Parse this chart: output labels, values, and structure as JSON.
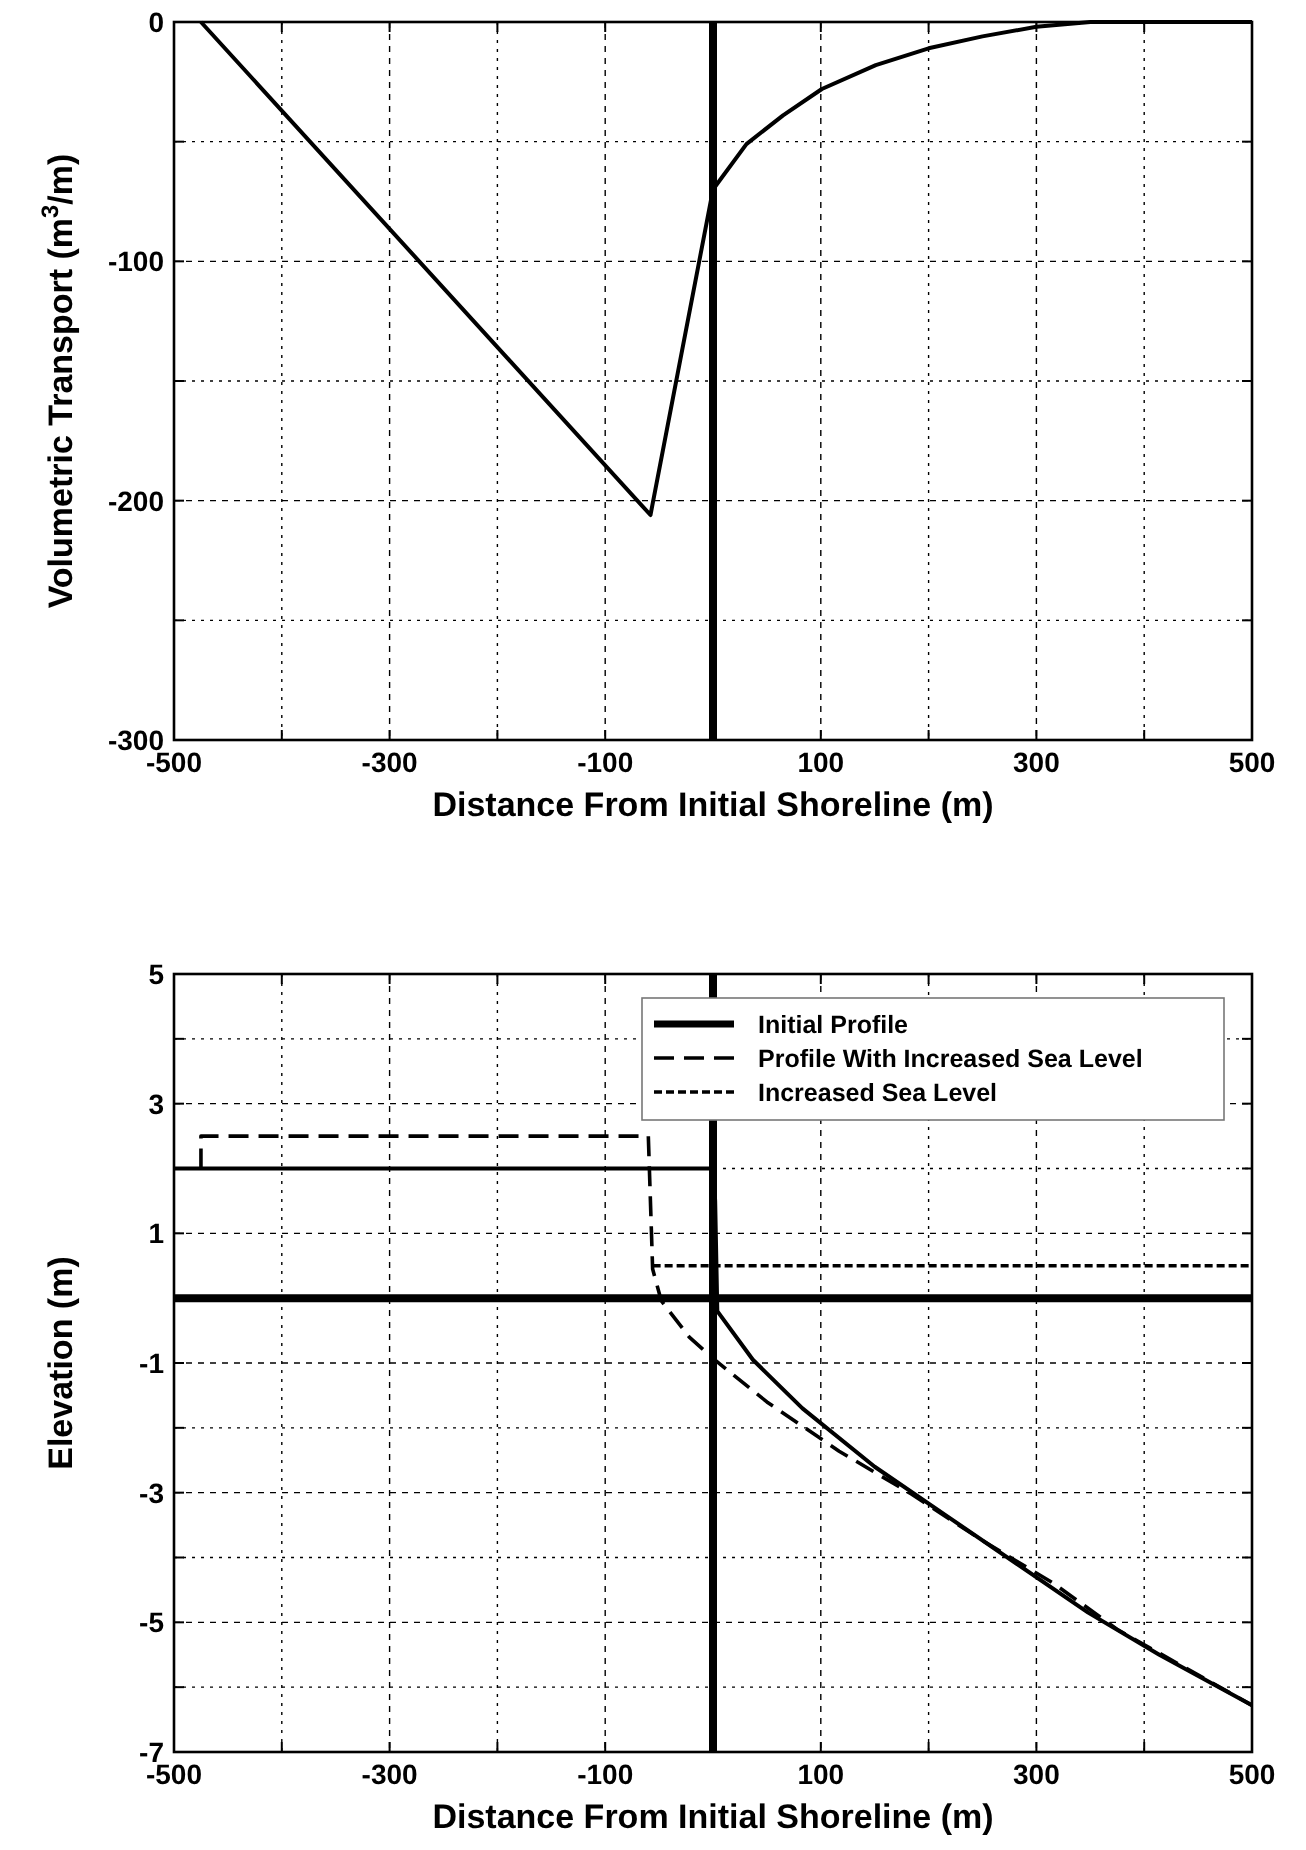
{
  "chart_data": [
    {
      "type": "line",
      "xlabel": "Distance From Initial Shoreline (m)",
      "ylabel": "Volumetric Transport (m$^{3}$/m)",
      "series": [
        {
          "color": "#000000",
          "line_style": "solid",
          "x": [
            -475,
            -58,
            0,
            31,
            65,
            101,
            151,
            200,
            250,
            300,
            350,
            500
          ],
          "values": [
            0,
            -206,
            -70,
            -51,
            -39,
            -28,
            -18,
            -11,
            -6,
            -2,
            0,
            0
          ]
        }
      ],
      "xlim": [
        -500,
        500
      ],
      "xticks": [
        -500,
        {
          "value": -400,
          "label": null
        },
        -300,
        {
          "value": -200,
          "label": null
        },
        -100,
        {
          "value": 0,
          "label": null
        },
        100,
        {
          "value": 200,
          "label": null
        },
        300,
        {
          "value": 400,
          "label": null
        },
        500
      ],
      "ylim": [
        -300,
        0
      ],
      "yticks": [
        -300,
        {
          "value": -250,
          "label": null
        },
        -200,
        {
          "value": -150,
          "label": null
        },
        -100,
        {
          "value": -50,
          "label": null
        },
        0
      ],
      "ref_lines": [
        {
          "axis": "x",
          "value": 0,
          "color": "#000000"
        }
      ],
      "grid": true,
      "legend": false
    },
    {
      "type": "line",
      "xlabel": "Distance From Initial Shoreline (m)",
      "ylabel": "Elevation (m)",
      "series": [
        {
          "name": "Initial Profile",
          "color": "#000000",
          "line_style": "solid",
          "x": [
            -500,
            0,
            2,
            4,
            37,
            83,
            150,
            216,
            282,
            348,
            414,
            500
          ],
          "values": [
            2,
            2,
            1.5,
            -0.2,
            -0.95,
            -1.7,
            -2.6,
            -3.35,
            -4.1,
            -4.85,
            -5.5,
            -6.28
          ]
        },
        {
          "name": "Profile With Increased Sea Level",
          "color": "#000000",
          "line_style": "dashed",
          "x": [
            -475,
            -475,
            -60,
            -56,
            -48,
            -22,
            0,
            50,
            117,
            184,
            250,
            316,
            376,
            500
          ],
          "values": [
            2,
            2.5,
            2.5,
            0.45,
            -0.04,
            -0.6,
            -0.93,
            -1.6,
            -2.36,
            -3.02,
            -3.74,
            -4.4,
            -5.12,
            -6.28
          ]
        },
        {
          "name": "Increased Sea Level",
          "color": "#000000",
          "line_style": "dotted",
          "x": [
            -56,
            500
          ],
          "values": [
            0.5,
            0.5
          ]
        }
      ],
      "xlim": [
        -500,
        500
      ],
      "xticks": [
        -500,
        {
          "value": -400,
          "label": null
        },
        -300,
        {
          "value": -200,
          "label": null
        },
        -100,
        {
          "value": 0,
          "label": null
        },
        100,
        {
          "value": 200,
          "label": null
        },
        300,
        {
          "value": 400,
          "label": null
        },
        500
      ],
      "ylim": [
        -7,
        5
      ],
      "yticks": [
        -7,
        {
          "value": -6,
          "label": null
        },
        -5,
        {
          "value": -4,
          "label": null
        },
        -3,
        {
          "value": -2,
          "label": null
        },
        -1,
        {
          "value": 0,
          "label": null
        },
        1,
        {
          "value": 2,
          "label": null
        },
        3,
        {
          "value": 4,
          "label": null
        },
        5
      ],
      "ref_lines": [
        {
          "axis": "x",
          "value": 0,
          "color": "#000000"
        },
        {
          "axis": "y",
          "value": 0,
          "color": "#000000"
        }
      ],
      "grid": true,
      "legend": "top right"
    }
  ]
}
